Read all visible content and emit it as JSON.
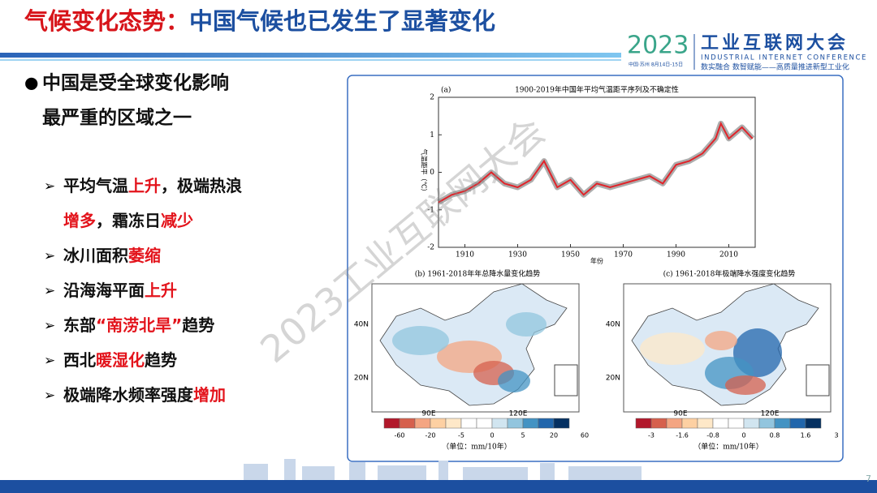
{
  "header": {
    "title": [
      {
        "text": "气候变化态势：",
        "color": "#d7141a"
      },
      {
        "text": "中国气候也已发生了显著变化",
        "color": "#1c4fa0"
      }
    ],
    "logo": {
      "year": "2023",
      "name": "工业互联网大会",
      "english": "INDUSTRIAL INTERNET CONFERENCE",
      "place": "中国·苏州 8月14日-15日",
      "slogan": "数实融合  数智赋能——高质量推进新型工业化"
    }
  },
  "lead": {
    "lines": [
      "中国是受全球变化影响",
      "最严重的区域之一"
    ]
  },
  "highlight_color": "#e3141c",
  "bullets": [
    {
      "lines": [
        [
          {
            "text": "平均气温"
          },
          {
            "text": "上升",
            "highlight": true
          },
          {
            "text": "，极端热浪"
          }
        ],
        [
          {
            "text": "增多",
            "highlight": true
          },
          {
            "text": "，霜冻日"
          },
          {
            "text": "减少",
            "highlight": true
          }
        ]
      ]
    },
    {
      "lines": [
        [
          {
            "text": "冰川面积"
          },
          {
            "text": "萎缩",
            "highlight": true
          }
        ]
      ]
    },
    {
      "lines": [
        [
          {
            "text": "沿海海平面"
          },
          {
            "text": "上升",
            "highlight": true
          }
        ]
      ]
    },
    {
      "lines": [
        [
          {
            "text": "东部"
          },
          {
            "text": "“南涝北旱”",
            "highlight": true
          },
          {
            "text": "趋势"
          }
        ]
      ]
    },
    {
      "lines": [
        [
          {
            "text": "西北"
          },
          {
            "text": "暖湿化",
            "highlight": true
          },
          {
            "text": "趋势"
          }
        ]
      ]
    },
    {
      "lines": [
        [
          {
            "text": "极端降水频率强度"
          },
          {
            "text": "增加",
            "highlight": true
          }
        ]
      ]
    }
  ],
  "figure": {
    "panel_a": {
      "label": "(a)",
      "title": "1900-2019年中国年平均气温距平序列及不确定性",
      "ylabel": "气温距平（℃）",
      "xlabel": "年份",
      "color": "#e0242a",
      "xlim": [
        1900,
        2020
      ],
      "ylim": [
        -2,
        2
      ],
      "xticks": [
        1910,
        1930,
        1950,
        1970,
        1990,
        2010
      ],
      "yticks": [
        -2,
        -1,
        0,
        1,
        2
      ],
      "x": [
        1900,
        1905,
        1910,
        1915,
        1920,
        1925,
        1930,
        1935,
        1940,
        1945,
        1950,
        1955,
        1960,
        1965,
        1970,
        1975,
        1980,
        1985,
        1990,
        1995,
        2000,
        2005,
        2007,
        2010,
        2015,
        2019
      ],
      "values": [
        -0.8,
        -0.6,
        -0.5,
        -0.3,
        0.0,
        -0.3,
        -0.4,
        -0.2,
        0.3,
        -0.4,
        -0.2,
        -0.6,
        -0.3,
        -0.4,
        -0.3,
        -0.2,
        -0.1,
        -0.3,
        0.2,
        0.3,
        0.5,
        0.9,
        1.3,
        0.9,
        1.2,
        0.9
      ]
    },
    "panel_b": {
      "title": "(b)  1961-2018年年总降水量变化趋势",
      "lat": [
        "40N",
        "20N"
      ],
      "lon": [
        "90E",
        "120E"
      ],
      "colorbar": [
        "-60",
        "-20",
        "-5",
        "0",
        "5",
        "20",
        "60"
      ],
      "unit": "（单位：mm/10年）"
    },
    "panel_c": {
      "title": "(c)  1961-2018年极端降水强度变化趋势",
      "lat": [
        "40N",
        "20N"
      ],
      "lon": [
        "90E",
        "120E"
      ],
      "colorbar": [
        "-3",
        "-1.6",
        "-0.8",
        "0",
        "0.8",
        "1.6",
        "3"
      ],
      "unit": "（单位：mm/10年）"
    }
  },
  "watermark": "2023工业互联网大会",
  "page_number": "7"
}
